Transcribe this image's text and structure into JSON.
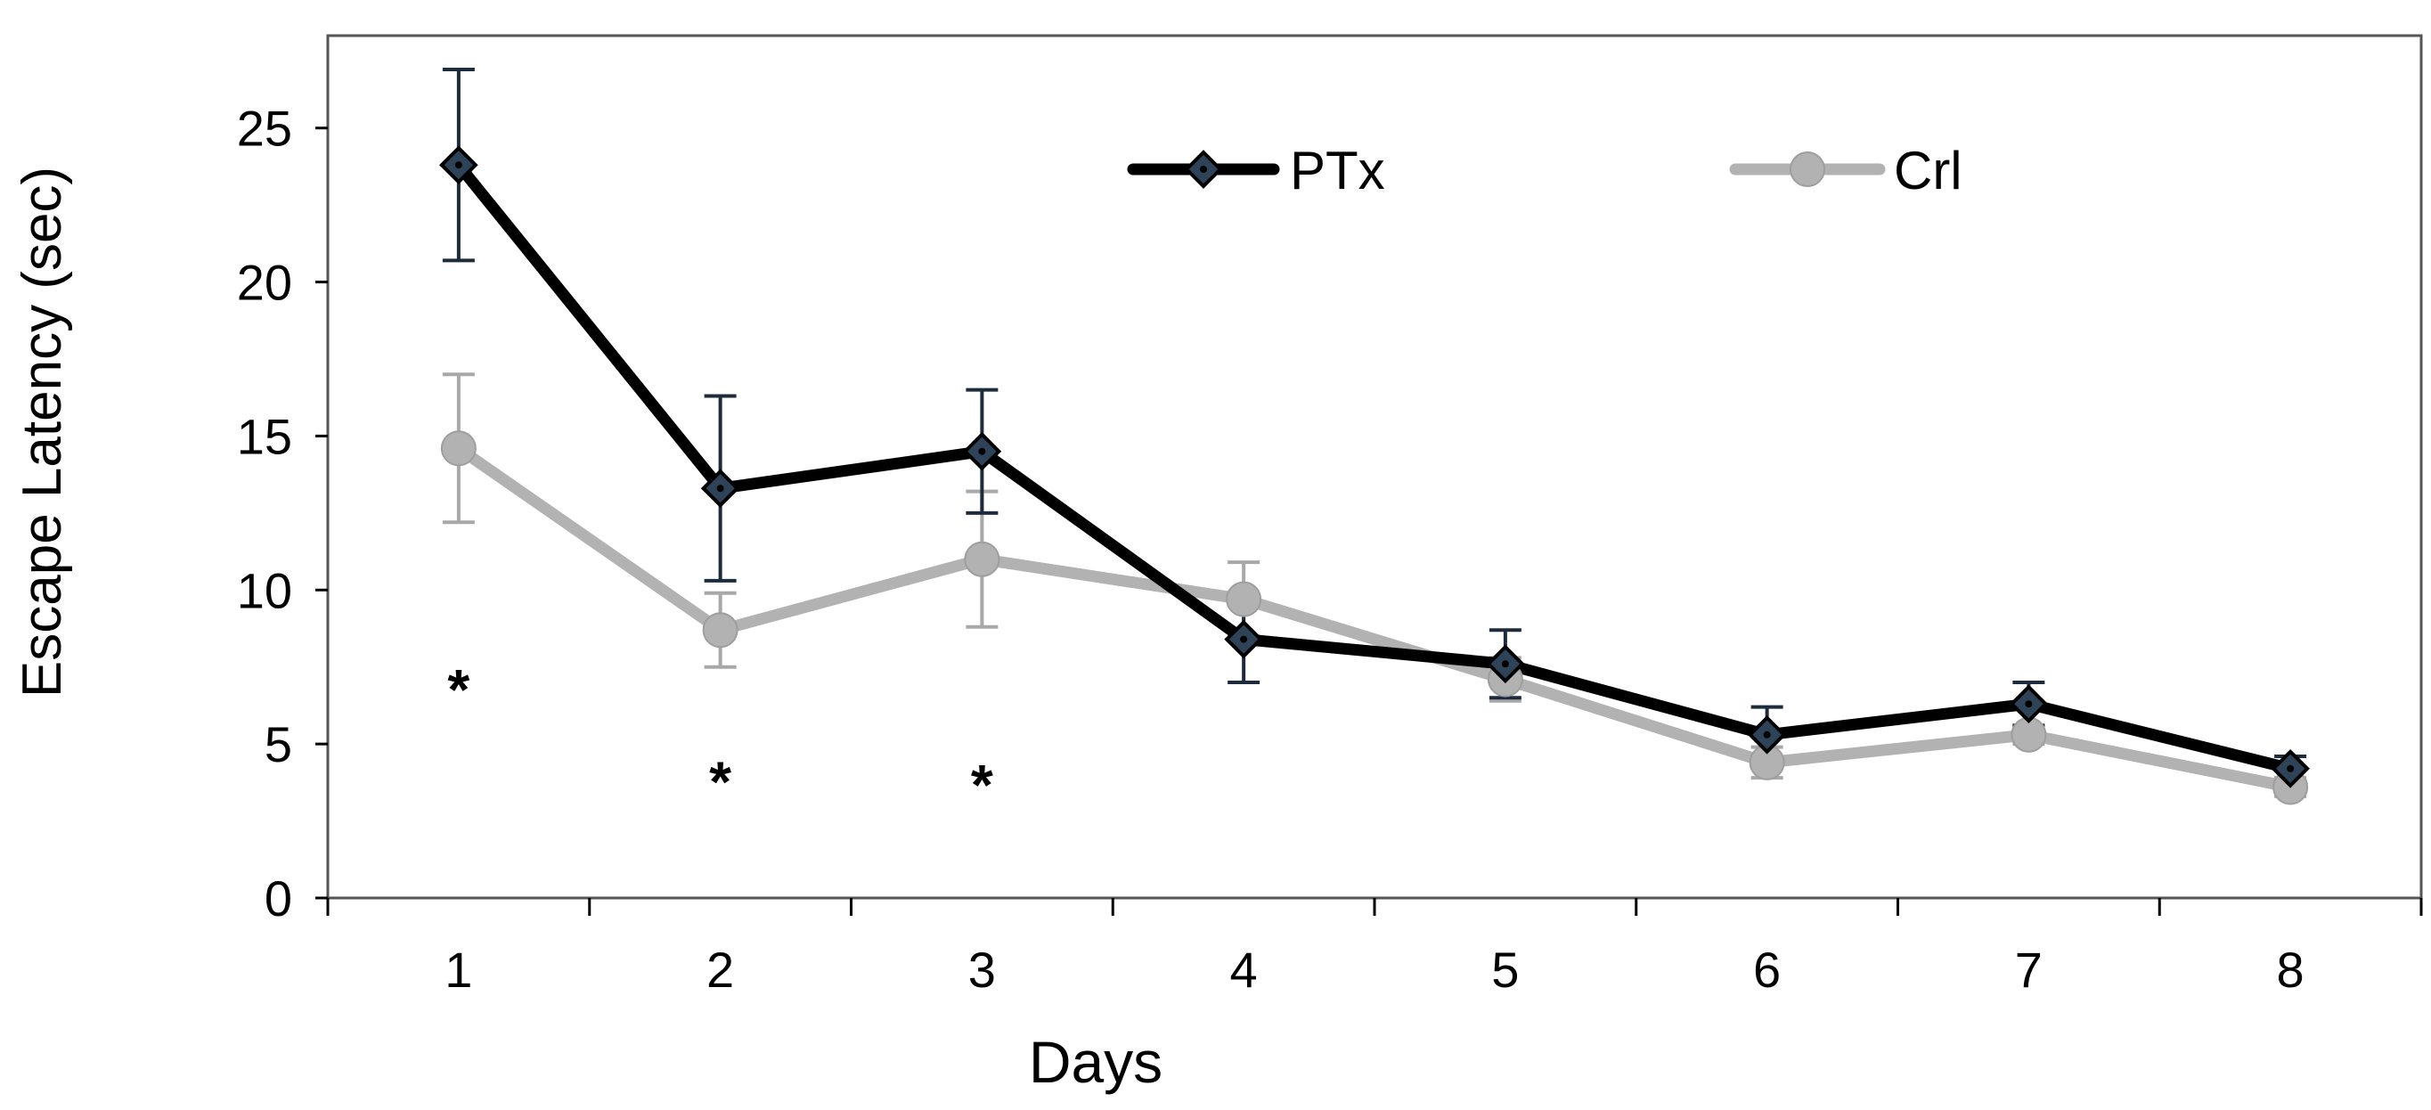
{
  "chart_data": {
    "type": "line",
    "title": "",
    "xlabel": "Days",
    "ylabel": "Escape Latency (sec)",
    "categories": [
      "1",
      "2",
      "3",
      "4",
      "5",
      "6",
      "7",
      "8"
    ],
    "ylim": [
      0,
      28
    ],
    "yticks": [
      0,
      5,
      10,
      15,
      20,
      25
    ],
    "yticklabels": [
      "0",
      "5",
      "10",
      "15",
      "20",
      "25"
    ],
    "grid": false,
    "legend_position": "top-center",
    "series": [
      {
        "name": "PTx",
        "color": "#000000",
        "marker": "diamond",
        "marker_fill": "#2e4358",
        "values": [
          23.8,
          13.3,
          14.5,
          8.4,
          7.6,
          5.3,
          6.3,
          4.2
        ],
        "error": [
          3.1,
          3.0,
          2.0,
          1.4,
          1.1,
          0.9,
          0.7,
          0.4
        ]
      },
      {
        "name": "Crl",
        "color": "#b2b2b2",
        "marker": "circle",
        "marker_fill": "#b2b2b2",
        "values": [
          14.6,
          8.7,
          11.0,
          9.7,
          7.1,
          4.4,
          5.3,
          3.6
        ],
        "error": [
          2.4,
          1.2,
          2.2,
          1.2,
          0.7,
          0.5,
          0.3,
          0.3
        ]
      }
    ],
    "annotations": [
      {
        "text": "*",
        "category": "1",
        "y": 7.0
      },
      {
        "text": "*",
        "category": "2",
        "y": 4.0
      },
      {
        "text": "*",
        "category": "3",
        "y": 3.9
      }
    ]
  }
}
